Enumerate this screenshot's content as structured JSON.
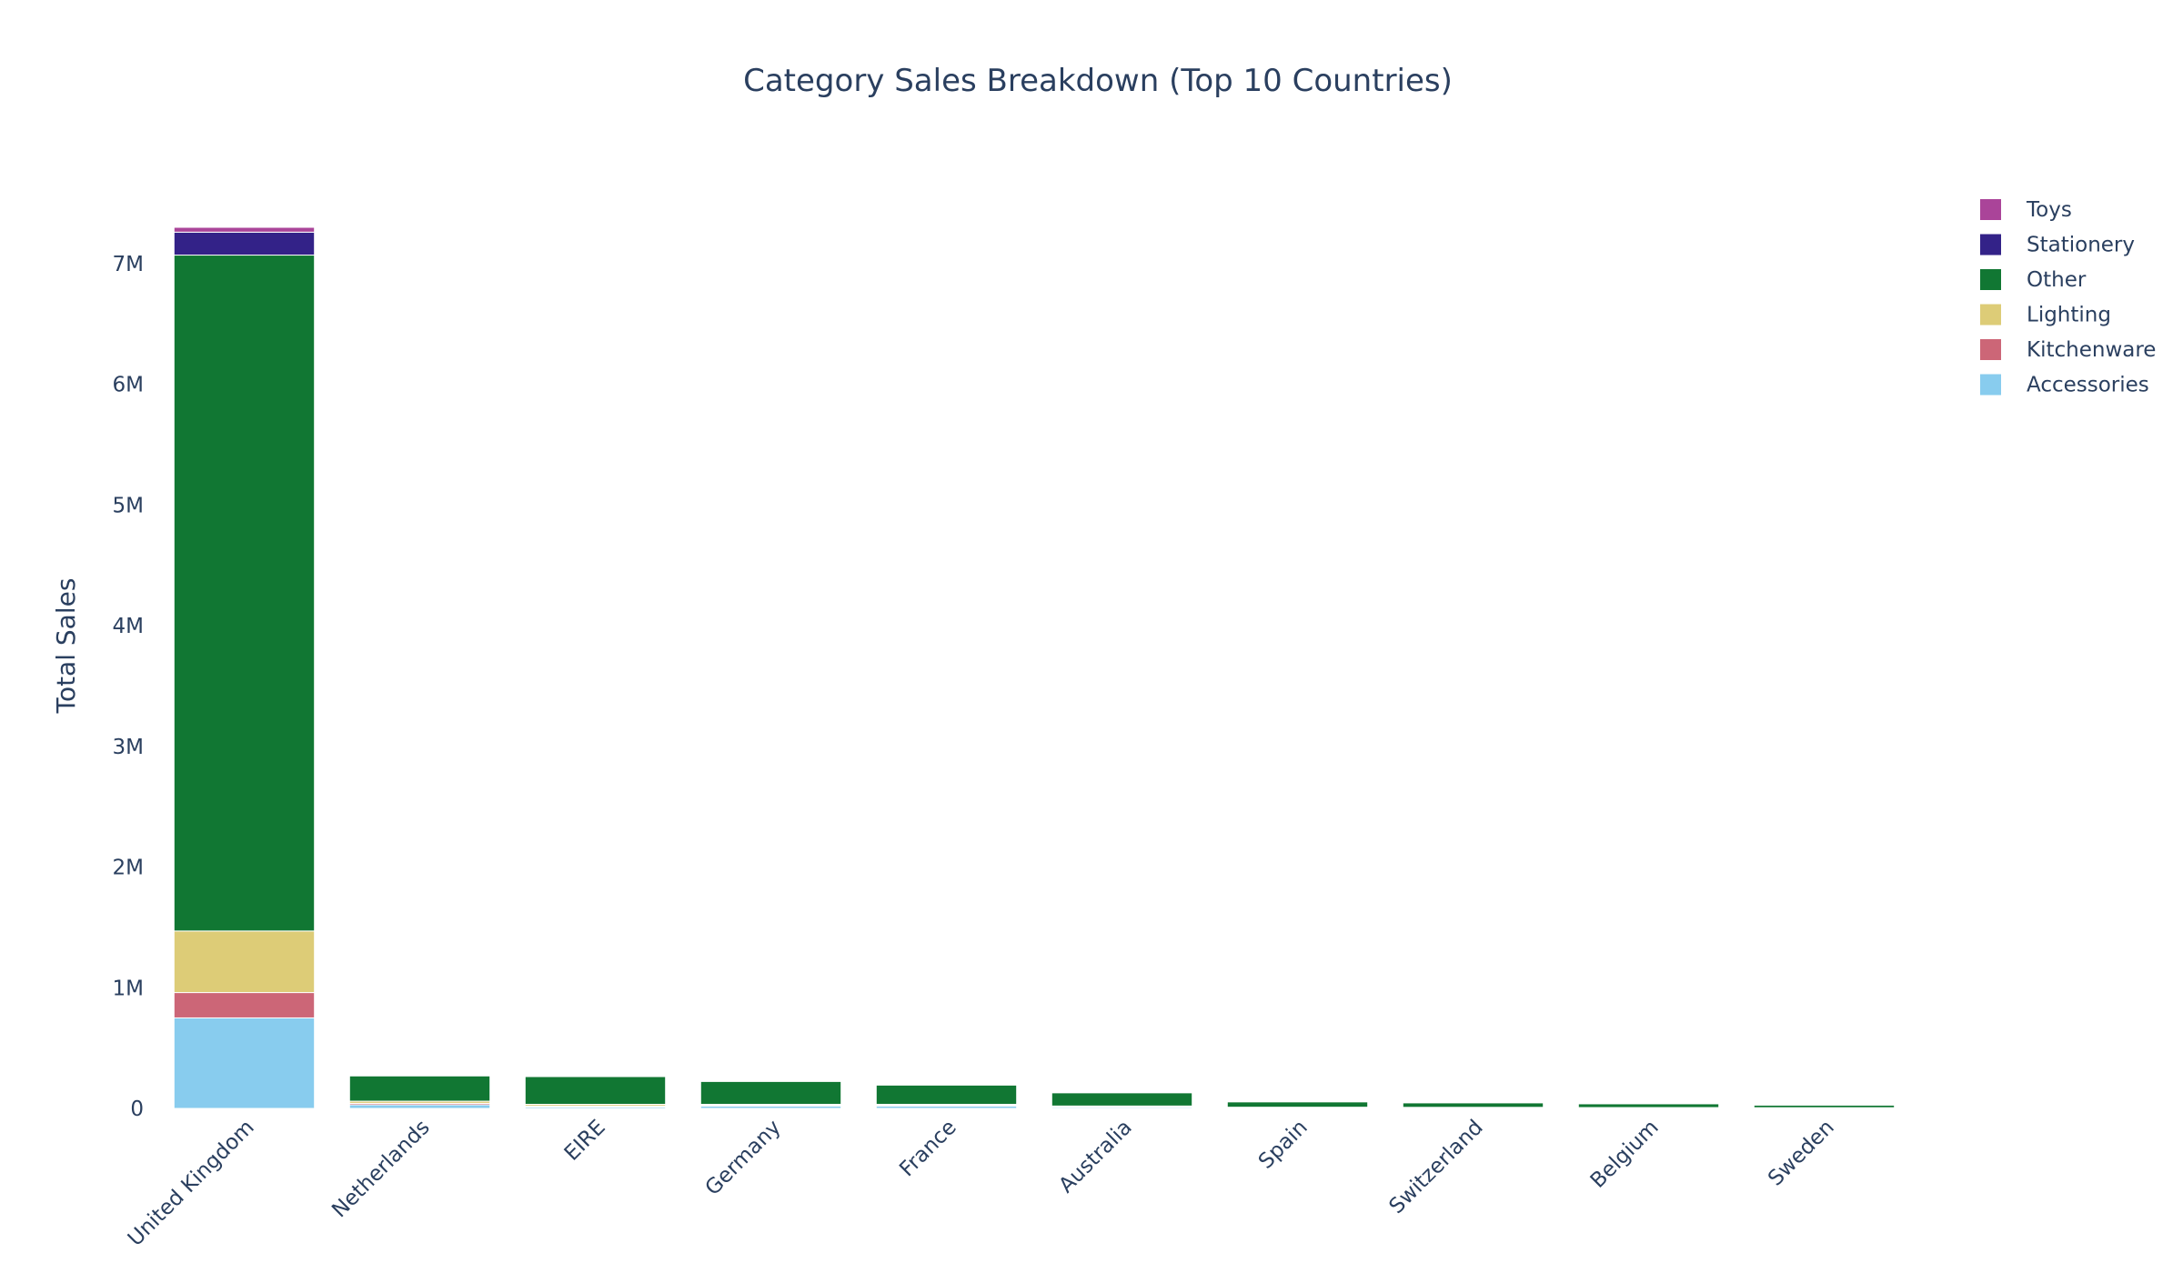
{
  "chart_data": {
    "type": "bar",
    "stacked": true,
    "title": "Category Sales Breakdown (Top 10 Countries)",
    "xlabel": "",
    "ylabel": "Total Sales",
    "ylim": [
      0,
      7300000
    ],
    "yticks": [
      {
        "value": 0,
        "label": "0"
      },
      {
        "value": 1000000,
        "label": "1M"
      },
      {
        "value": 2000000,
        "label": "2M"
      },
      {
        "value": 3000000,
        "label": "3M"
      },
      {
        "value": 4000000,
        "label": "4M"
      },
      {
        "value": 5000000,
        "label": "5M"
      },
      {
        "value": 6000000,
        "label": "6M"
      },
      {
        "value": 7000000,
        "label": "7M"
      }
    ],
    "grid": false,
    "legend_position": "top-right",
    "categories": [
      "United Kingdom",
      "Netherlands",
      "EIRE",
      "Germany",
      "France",
      "Australia",
      "Spain",
      "Switzerland",
      "Belgium",
      "Sweden"
    ],
    "series": [
      {
        "name": "Accessories",
        "color": "#88CCEE",
        "values": [
          750000,
          30000,
          12000,
          20000,
          20000,
          10000,
          5000,
          4000,
          3000,
          3000
        ]
      },
      {
        "name": "Kitchenware",
        "color": "#CC6677",
        "values": [
          210000,
          12000,
          8000,
          6000,
          6000,
          4000,
          2000,
          2000,
          2000,
          1000
        ]
      },
      {
        "name": "Lighting",
        "color": "#DDCC77",
        "values": [
          510000,
          18000,
          14000,
          8000,
          8000,
          6000,
          3000,
          3000,
          2000,
          2000
        ]
      },
      {
        "name": "Other",
        "color": "#117733",
        "values": [
          5600000,
          210000,
          230000,
          190000,
          160000,
          110000,
          45000,
          38000,
          32000,
          22000
        ]
      },
      {
        "name": "Stationery",
        "color": "#332288",
        "values": [
          190000,
          3000,
          3000,
          2000,
          2000,
          2000,
          1000,
          1000,
          1000,
          1000
        ]
      },
      {
        "name": "Toys",
        "color": "#AA4499",
        "values": [
          40000,
          2000,
          2000,
          1000,
          1000,
          1000,
          1000,
          1000,
          1000,
          1000
        ]
      }
    ]
  }
}
